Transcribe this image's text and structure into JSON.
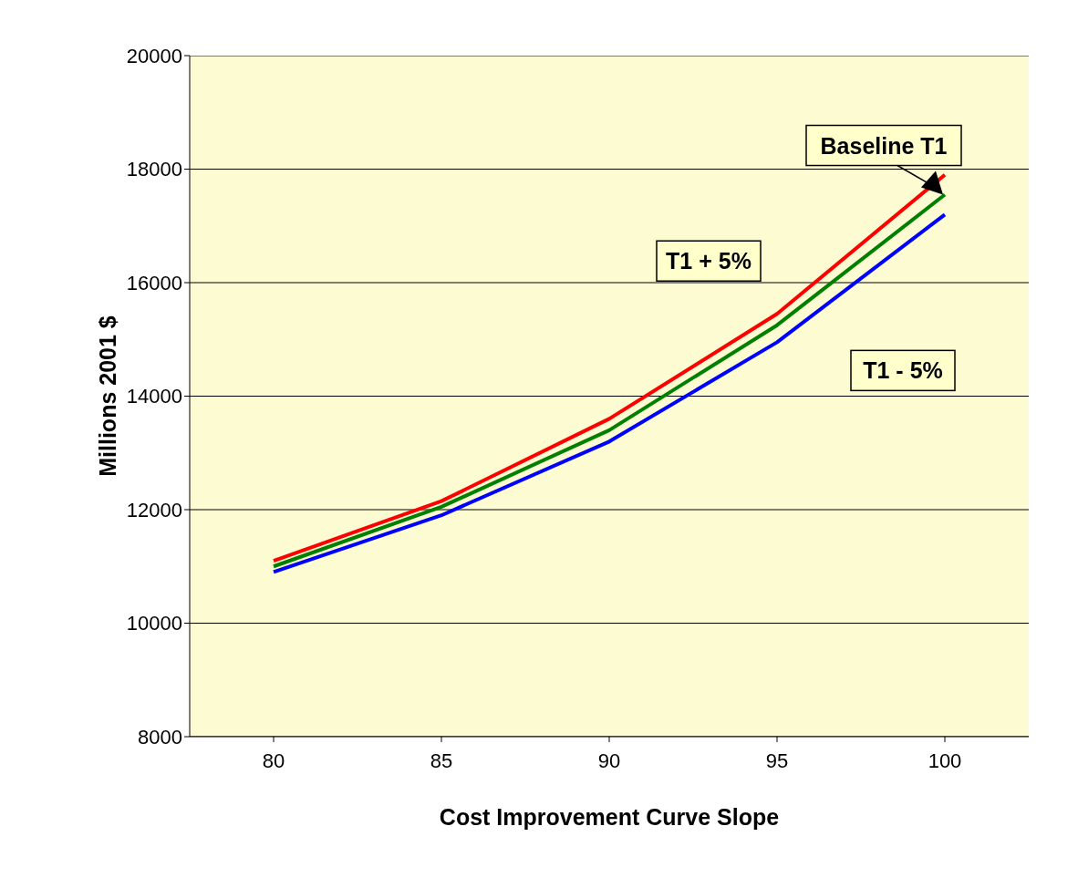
{
  "chart_data": {
    "type": "line",
    "xlabel": "Cost Improvement Curve Slope",
    "ylabel": "Millions 2001 $",
    "categories": [
      "80",
      "85",
      "90",
      "95",
      "100"
    ],
    "series": [
      {
        "name": "T1 + 5%",
        "color": "#ff0000",
        "values": [
          11100,
          12150,
          13600,
          15450,
          17900
        ]
      },
      {
        "name": "Baseline T1",
        "color": "#008000",
        "values": [
          11000,
          12050,
          13400,
          15250,
          17550
        ]
      },
      {
        "name": "T1 - 5%",
        "color": "#0000ff",
        "values": [
          10900,
          11900,
          13200,
          14950,
          17200
        ]
      }
    ],
    "ylim": [
      8000,
      20000
    ],
    "yticks": [
      8000,
      10000,
      12000,
      14000,
      16000,
      18000,
      20000
    ],
    "grid": "y",
    "legend": false,
    "marker": "none",
    "line_style": "solid"
  }
}
